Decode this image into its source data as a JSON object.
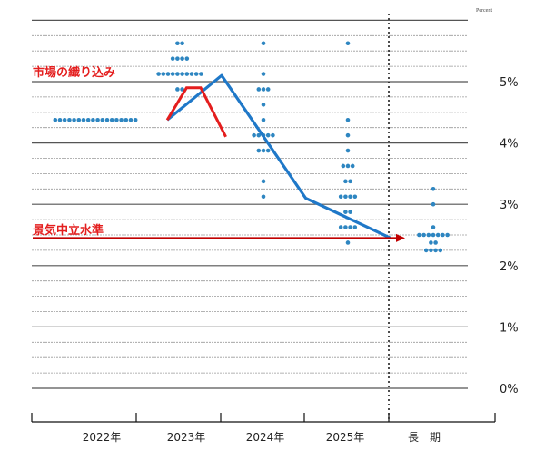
{
  "chart_data": {
    "type": "scatter",
    "title": "",
    "ylabel": "Percent",
    "y_ticks": [
      "0%",
      "1%",
      "2%",
      "3%",
      "4%",
      "5%"
    ],
    "x_categories": [
      "2022年",
      "2023年",
      "2024年",
      "2025年",
      "長　期"
    ],
    "ylim": [
      -0.2,
      6.0
    ],
    "dot_plot": [
      {
        "category": "2022年",
        "rate_counts": [
          [
            4.375,
            18
          ]
        ]
      },
      {
        "category": "2023年",
        "rate_counts": [
          [
            5.625,
            2
          ],
          [
            5.375,
            4
          ],
          [
            5.125,
            10
          ],
          [
            4.875,
            2
          ]
        ]
      },
      {
        "category": "2024年",
        "rate_counts": [
          [
            5.625,
            1
          ],
          [
            5.125,
            1
          ],
          [
            4.875,
            3
          ],
          [
            4.625,
            1
          ],
          [
            4.375,
            1
          ],
          [
            4.125,
            5
          ],
          [
            3.875,
            3
          ],
          [
            3.375,
            1
          ],
          [
            3.125,
            1
          ]
        ]
      },
      {
        "category": "2025年",
        "rate_counts": [
          [
            5.625,
            1
          ],
          [
            4.375,
            1
          ],
          [
            4.125,
            1
          ],
          [
            3.875,
            1
          ],
          [
            3.625,
            3
          ],
          [
            3.375,
            2
          ],
          [
            3.125,
            4
          ],
          [
            2.875,
            2
          ],
          [
            2.625,
            4
          ],
          [
            2.375,
            1
          ]
        ]
      },
      {
        "category": "長　期",
        "rate_counts": [
          [
            3.25,
            1
          ],
          [
            3.0,
            1
          ],
          [
            2.625,
            1
          ],
          [
            2.5,
            7
          ],
          [
            2.375,
            2
          ],
          [
            2.25,
            4
          ]
        ]
      }
    ],
    "median_line": [
      [
        0.85,
        4.375
      ],
      [
        1.5,
        5.1
      ],
      [
        2.5,
        3.1
      ],
      [
        3.5,
        2.45
      ]
    ],
    "market_pricing_line": [
      [
        0.85,
        4.375
      ],
      [
        1.08,
        4.9
      ],
      [
        1.25,
        4.9
      ],
      [
        1.55,
        4.1
      ]
    ],
    "annotations": [
      {
        "text": "市場の織り込み",
        "color": "#e41e1e"
      },
      {
        "text": "景気中立水準",
        "color": "#e41e1e"
      }
    ],
    "colors": {
      "dots": "#2e86c1",
      "median": "#1f78c8",
      "market": "#e41e1e",
      "neutral_arrow": "#c00000",
      "grid": "#8c8c8c"
    },
    "grid": true
  }
}
